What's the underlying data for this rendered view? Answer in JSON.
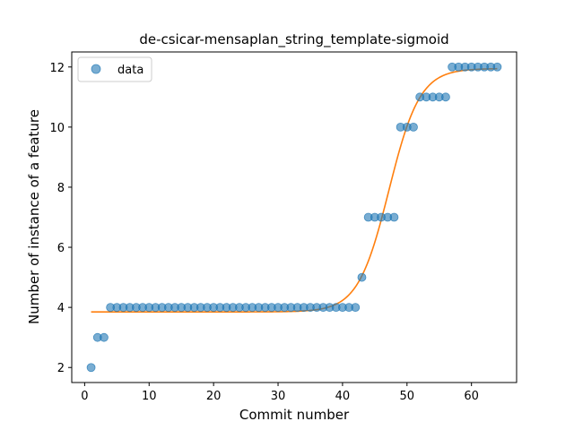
{
  "chart_data": {
    "type": "scatter",
    "title": "de-csicar-mensaplan_string_template-sigmoid",
    "xlabel": "Commit number",
    "ylabel": "Number of instance of a feature",
    "xlim": [
      -2,
      67
    ],
    "ylim": [
      1.5,
      12.5
    ],
    "xticks": [
      0,
      10,
      20,
      30,
      40,
      50,
      60
    ],
    "yticks": [
      2,
      4,
      6,
      8,
      10,
      12
    ],
    "grid": false,
    "legend": {
      "placement": "top-left",
      "entries": [
        "data"
      ]
    },
    "colors": {
      "data": "#1f77b4",
      "fit": "#ff7f0e"
    },
    "series": [
      {
        "name": "data",
        "kind": "scatter",
        "x": [
          1,
          2,
          3,
          4,
          5,
          6,
          7,
          8,
          9,
          10,
          11,
          12,
          13,
          14,
          15,
          16,
          17,
          18,
          19,
          20,
          21,
          22,
          23,
          24,
          25,
          26,
          27,
          28,
          29,
          30,
          31,
          32,
          33,
          34,
          35,
          36,
          37,
          38,
          39,
          40,
          41,
          42,
          43,
          44,
          45,
          46,
          47,
          48,
          49,
          50,
          51,
          52,
          53,
          54,
          55,
          56,
          57,
          58,
          59,
          60,
          61,
          62,
          63,
          64
        ],
        "y": [
          2,
          3,
          3,
          4,
          4,
          4,
          4,
          4,
          4,
          4,
          4,
          4,
          4,
          4,
          4,
          4,
          4,
          4,
          4,
          4,
          4,
          4,
          4,
          4,
          4,
          4,
          4,
          4,
          4,
          4,
          4,
          4,
          4,
          4,
          4,
          4,
          4,
          4,
          4,
          4,
          4,
          4,
          5,
          7,
          7,
          7,
          7,
          7,
          10,
          10,
          10,
          11,
          11,
          11,
          11,
          11,
          12,
          12,
          12,
          12,
          12,
          12,
          12,
          12
        ]
      },
      {
        "kind": "line",
        "model": "sigmoid",
        "params": {
          "low": 3.85,
          "high": 11.95,
          "midpoint": 47.2,
          "scale": 2.4
        },
        "x_range": [
          1,
          64
        ]
      }
    ]
  }
}
